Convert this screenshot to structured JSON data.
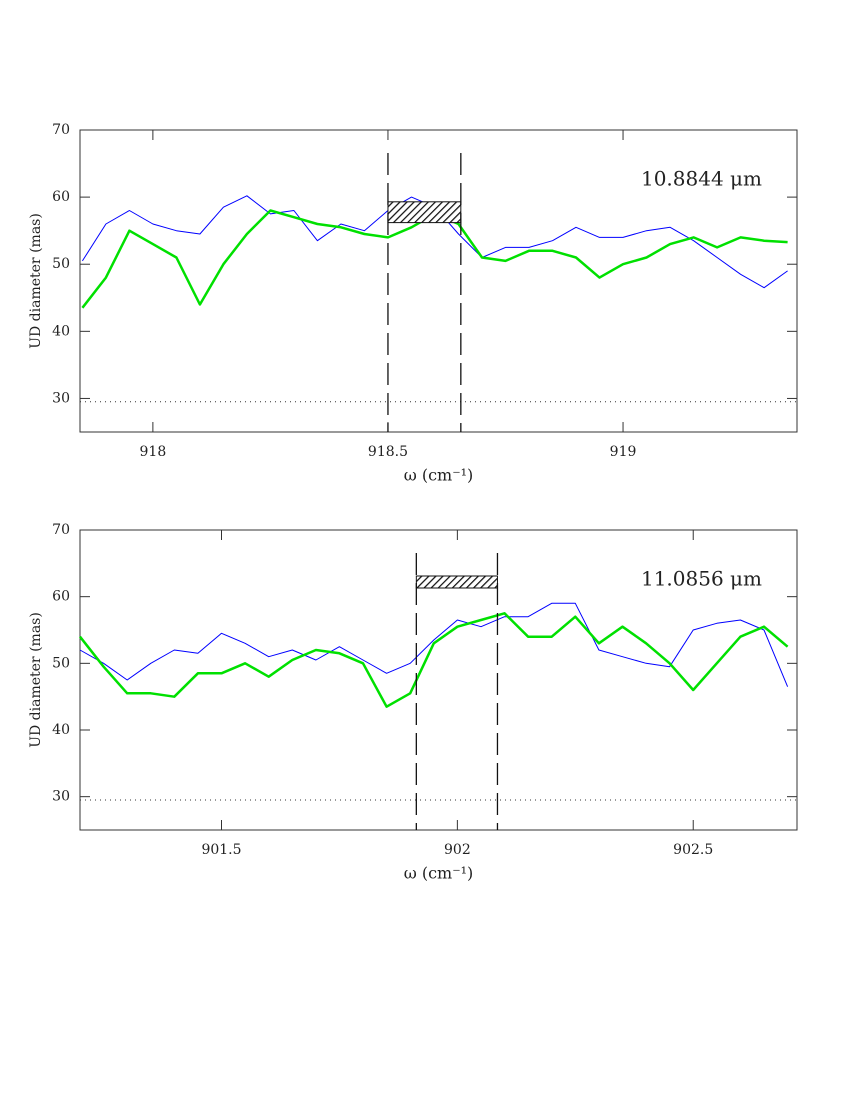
{
  "chart_data": [
    {
      "type": "line",
      "annotation": "10.8844 μm",
      "xlabel": "ω (cm⁻¹)",
      "ylabel": "UD diameter (mas)",
      "xlim": [
        917.845,
        919.37
      ],
      "ylim": [
        25,
        70
      ],
      "xticks": [
        918,
        918.5,
        919
      ],
      "yticks": [
        30,
        40,
        50,
        60,
        70
      ],
      "vlines": [
        918.5,
        918.655
      ],
      "hline": 29.5,
      "hatch_box": {
        "x": [
          918.5,
          918.655
        ],
        "y": [
          56.2,
          59.3
        ]
      },
      "x": [
        917.85,
        917.9,
        917.95,
        918,
        918.05,
        918.1,
        918.15,
        918.2,
        918.25,
        918.3,
        918.35,
        918.4,
        918.45,
        918.5,
        918.55,
        918.6,
        918.65,
        918.7,
        918.75,
        918.8,
        918.85,
        918.9,
        918.95,
        919,
        919.05,
        919.1,
        919.15,
        919.2,
        919.25,
        919.3,
        919.35
      ],
      "series": [
        {
          "color": "#0000ff",
          "width": 1,
          "values": [
            50.5,
            56,
            58,
            56,
            55,
            54.5,
            58.5,
            60.2,
            57.5,
            58,
            53.5,
            56,
            55,
            58,
            60,
            58.5,
            54.5,
            51,
            52.5,
            52.5,
            53.5,
            55.5,
            54,
            54,
            55,
            55.5,
            53.5,
            51,
            48.5,
            46.5,
            49
          ]
        },
        {
          "color": "#00e000",
          "width": 2.5,
          "values": [
            43.5,
            48,
            55,
            53,
            51,
            44,
            50,
            54.5,
            58,
            57,
            56,
            55.5,
            54.5,
            54,
            55.5,
            57.5,
            56,
            51,
            50.5,
            52,
            52,
            51,
            48,
            50,
            51,
            53,
            54,
            52.5,
            54,
            53.5,
            53.3
          ]
        }
      ]
    },
    {
      "type": "line",
      "annotation": "11.0856 μm",
      "xlabel": "ω (cm⁻¹)",
      "ylabel": "UD diameter (mas)",
      "xlim": [
        901.2,
        902.72
      ],
      "ylim": [
        25,
        70
      ],
      "xticks": [
        901.5,
        902,
        902.5
      ],
      "yticks": [
        30,
        40,
        50,
        60,
        70
      ],
      "vlines": [
        901.913,
        902.085
      ],
      "hline": 29.5,
      "hatch_box": {
        "x": [
          901.913,
          902.085
        ],
        "y": [
          61.3,
          63.1
        ]
      },
      "x": [
        901.2,
        901.25,
        901.3,
        901.35,
        901.4,
        901.45,
        901.5,
        901.55,
        901.6,
        901.65,
        901.7,
        901.75,
        901.8,
        901.85,
        901.9,
        901.95,
        902,
        902.05,
        902.1,
        902.15,
        902.2,
        902.25,
        902.3,
        902.35,
        902.4,
        902.45,
        902.5,
        902.55,
        902.6,
        902.65,
        902.7
      ],
      "series": [
        {
          "color": "#0000ff",
          "width": 1,
          "values": [
            52,
            50,
            47.5,
            50,
            52,
            51.5,
            54.5,
            53,
            51,
            52,
            50.5,
            52.5,
            50.5,
            48.5,
            50,
            53.5,
            56.5,
            55.5,
            57,
            57,
            59,
            59,
            52,
            51,
            50,
            49.5,
            55,
            56,
            56.5,
            55,
            46.5
          ]
        },
        {
          "color": "#00e000",
          "width": 2.5,
          "values": [
            54,
            49.5,
            45.5,
            45.5,
            45,
            48.5,
            48.5,
            50,
            48,
            50.5,
            52,
            51.5,
            50,
            43.5,
            45.5,
            53,
            55.5,
            56.5,
            57.5,
            54,
            54,
            57,
            53,
            55.5,
            53,
            50,
            46,
            50,
            54,
            55.5,
            52.5
          ]
        }
      ]
    }
  ]
}
